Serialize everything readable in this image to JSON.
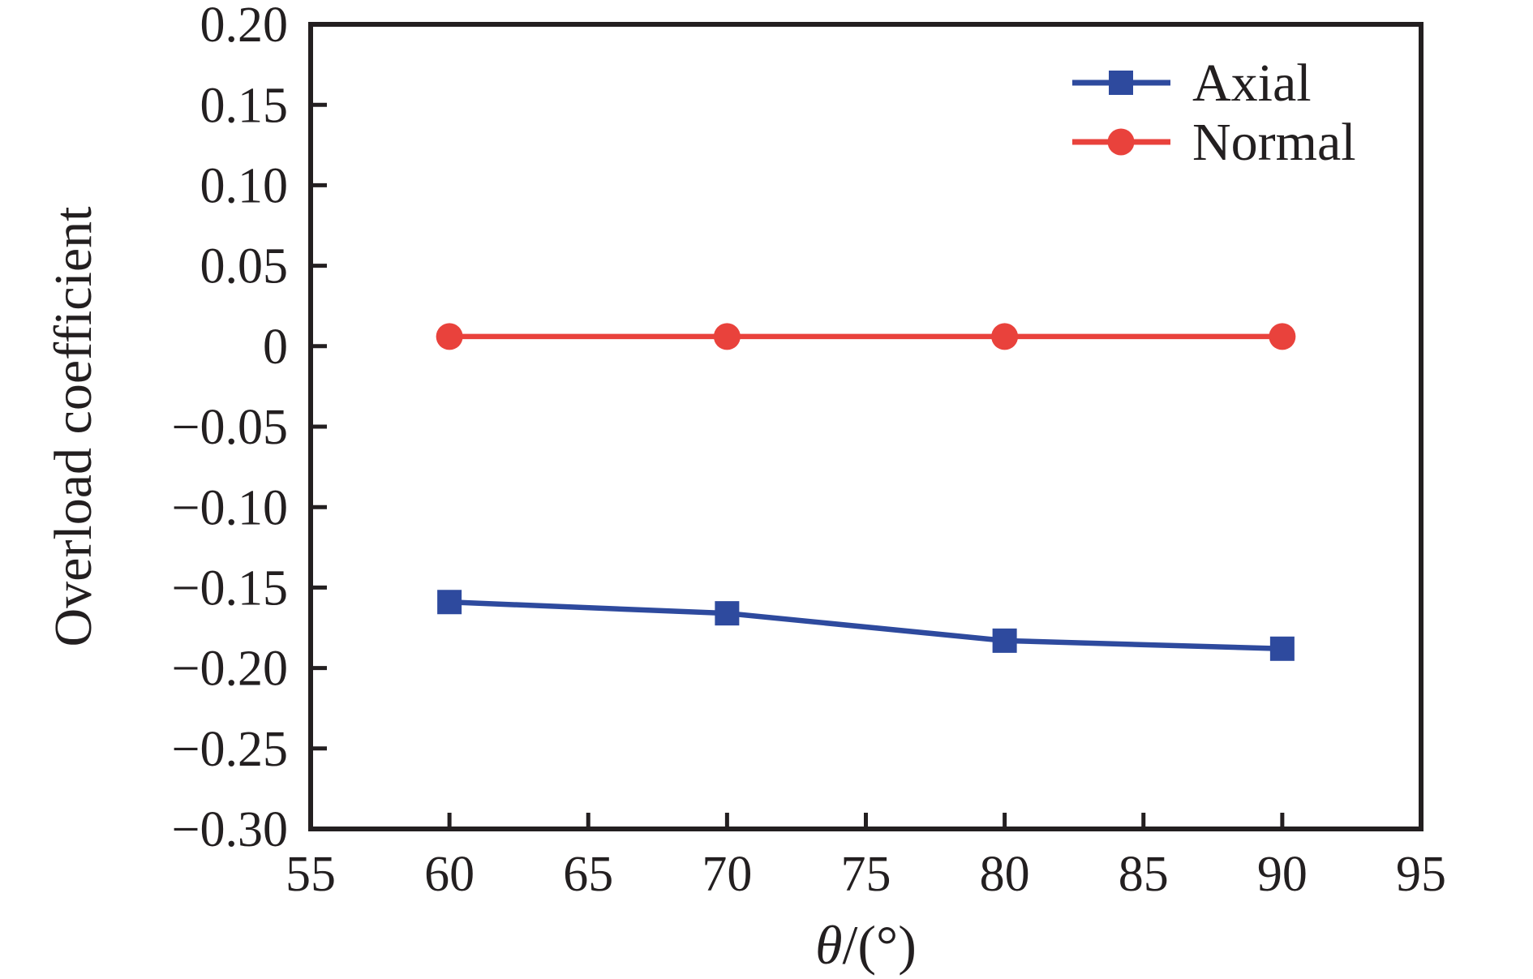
{
  "figure": {
    "background": "#ffffff",
    "axis_color": "#231f20",
    "text_color": "#231f20"
  },
  "chart_data": {
    "type": "line",
    "title": "",
    "xlabel": "θ/(°)",
    "ylabel": "Overload coefficient",
    "xlim": [
      55,
      95
    ],
    "ylim": [
      -0.3,
      0.2
    ],
    "x_ticks": [
      55,
      60,
      65,
      70,
      75,
      80,
      85,
      90,
      95
    ],
    "x_tick_labels": [
      "55",
      "60",
      "65",
      "70",
      "75",
      "80",
      "85",
      "90",
      "95"
    ],
    "y_ticks": [
      0.2,
      0.15,
      0.1,
      0.05,
      0,
      -0.05,
      -0.1,
      -0.15,
      -0.2,
      -0.25,
      -0.3
    ],
    "y_tick_labels": [
      "0.20",
      "0.15",
      "0.10",
      "0.05",
      "0",
      "−0.05",
      "−0.10",
      "−0.15",
      "−0.20",
      "−0.25",
      "−0.30"
    ],
    "grid": false,
    "legend_position": "top-right-inside",
    "x": [
      60,
      70,
      80,
      90
    ],
    "series": [
      {
        "name": "Axial",
        "color": "#2e4a9e",
        "marker": "square",
        "values": [
          -0.159,
          -0.166,
          -0.183,
          -0.188
        ]
      },
      {
        "name": "Normal",
        "color": "#e9423c",
        "marker": "circle",
        "values": [
          0.006,
          0.006,
          0.006,
          0.006
        ]
      }
    ]
  }
}
